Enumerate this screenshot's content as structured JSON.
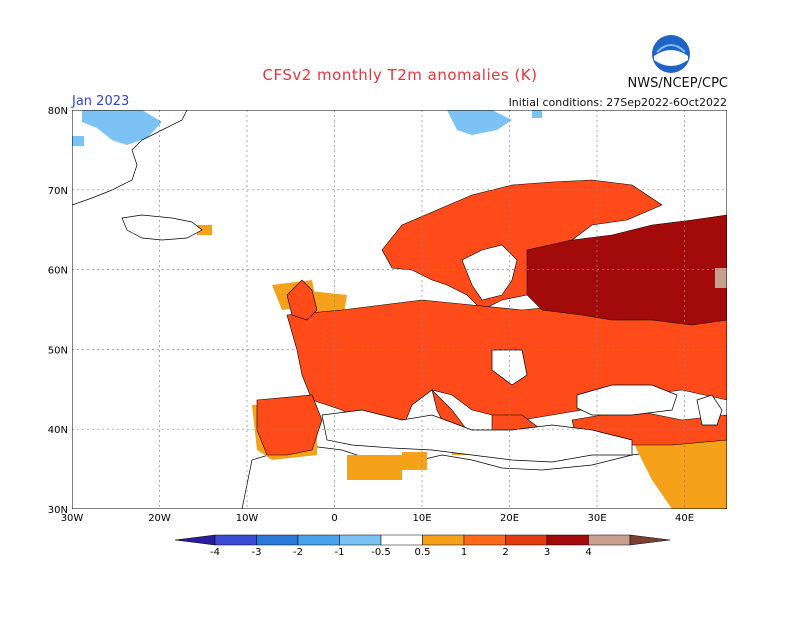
{
  "header": {
    "title": "CFSv2 monthly T2m anomalies (K)",
    "agency": "NWS/NCEP/CPC",
    "month": "Jan 2023",
    "initial_conditions": "Initial conditions: 27Sep2022-6Oct2022",
    "logo_text": "NOAA"
  },
  "axes": {
    "lon_labels": [
      "30W",
      "20W",
      "10W",
      "0",
      "10E",
      "20E",
      "30E",
      "40E"
    ],
    "lat_labels": [
      "80N",
      "70N",
      "60N",
      "50N",
      "40N",
      "30N"
    ]
  },
  "colorbar": {
    "labels": [
      "-4",
      "-3",
      "-2",
      "-1",
      "-0.5",
      "0.5",
      "1",
      "2",
      "3",
      "4"
    ],
    "colors": [
      "#2a1e9e",
      "#3b4bd6",
      "#2a78d8",
      "#4aa3ee",
      "#7cc2f4",
      "#ffffff",
      "#f5a11a",
      "#ff6a1a",
      "#e43a12",
      "#a30a0a",
      "#c8a090",
      "#7a4030"
    ]
  },
  "colors": {
    "ocean": "#ffffff",
    "land_neutral": "#ffffff",
    "anom_05_1": "#f5a11a",
    "anom_1_2": "#ff5a1f",
    "anom_2_3": "#a30a0a",
    "anom_3_4": "#c8a090",
    "neg_1_05": "#7cc2f4",
    "grid": "#888888"
  }
}
